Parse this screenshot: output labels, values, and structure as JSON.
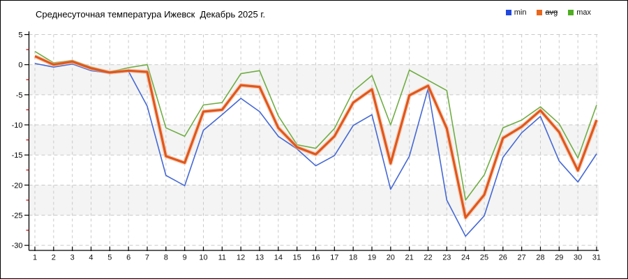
{
  "header": {
    "title": "Среднесуточная температура Ижевск  Декабрь 2025 г."
  },
  "legend": {
    "items": [
      {
        "label": "min",
        "color": "#2047e0",
        "strikethrough": false
      },
      {
        "label": "avg",
        "color": "#e8671c",
        "strikethrough": true
      },
      {
        "label": "max",
        "color": "#4fae22",
        "strikethrough": false
      }
    ]
  },
  "chart_data": {
    "type": "line",
    "title": "Среднесуточная температура Ижевск  Декабрь 2025 г.",
    "xlabel": "",
    "ylabel": "",
    "x": [
      1,
      2,
      3,
      4,
      5,
      6,
      7,
      8,
      9,
      10,
      11,
      12,
      13,
      14,
      15,
      16,
      17,
      18,
      19,
      20,
      21,
      22,
      23,
      24,
      25,
      26,
      27,
      28,
      29,
      30,
      31
    ],
    "series": [
      {
        "name": "max",
        "color": "#70ad43",
        "values": [
          2.2,
          0.3,
          0.7,
          -0.4,
          -1.2,
          -0.5,
          0.0,
          -10.5,
          -11.9,
          -6.7,
          -6.3,
          -1.5,
          -1.0,
          -8.5,
          -13.3,
          -13.9,
          -10.6,
          -4.4,
          -1.8,
          -10.0,
          -0.9,
          -2.6,
          -4.3,
          -22.5,
          -18.3,
          -10.5,
          -9.2,
          -7.0,
          -9.8,
          -15.5,
          -6.7
        ]
      },
      {
        "name": "min",
        "color": "#4568d4",
        "values": [
          0.2,
          -0.4,
          0.1,
          -1.0,
          -1.4,
          -1.1,
          -6.9,
          -18.4,
          -20.1,
          -10.9,
          -8.3,
          -5.6,
          -7.8,
          -11.9,
          -14.0,
          -16.8,
          -15.1,
          -10.1,
          -8.3,
          -20.7,
          -15.2,
          -4.0,
          -22.5,
          -28.5,
          -25.1,
          -15.4,
          -11.3,
          -8.6,
          -16.0,
          -19.5,
          -14.8
        ]
      },
      {
        "name": "avg",
        "color": "#e0571c",
        "halo": "#f5b08c",
        "values": [
          1.4,
          0.0,
          0.5,
          -0.6,
          -1.3,
          -1.0,
          -1.2,
          -15.2,
          -16.3,
          -7.8,
          -7.5,
          -3.4,
          -3.7,
          -10.5,
          -13.7,
          -14.9,
          -11.9,
          -6.3,
          -4.1,
          -16.4,
          -5.1,
          -3.5,
          -10.6,
          -25.4,
          -21.6,
          -12.2,
          -10.3,
          -7.6,
          -11.2,
          -17.6,
          -9.2
        ]
      }
    ],
    "ylim": [
      -30,
      5
    ],
    "y_major_ticks": [
      5,
      0,
      -5,
      -10,
      -15,
      -20,
      -25,
      -30
    ],
    "y_minor_ticks": [
      2.5,
      -2.5,
      -7.5,
      -12.5,
      -17.5,
      -22.5,
      -27.5
    ],
    "bands": [
      [
        0,
        -5
      ],
      [
        -10,
        -15
      ],
      [
        -20,
        -25
      ]
    ],
    "band_color": "#f4f4f4",
    "grid_color": "#c9c9c9",
    "axis_color": "#000000",
    "minor_tick_color": "#cc0000",
    "grid": "on",
    "legend_position": "top-right"
  }
}
